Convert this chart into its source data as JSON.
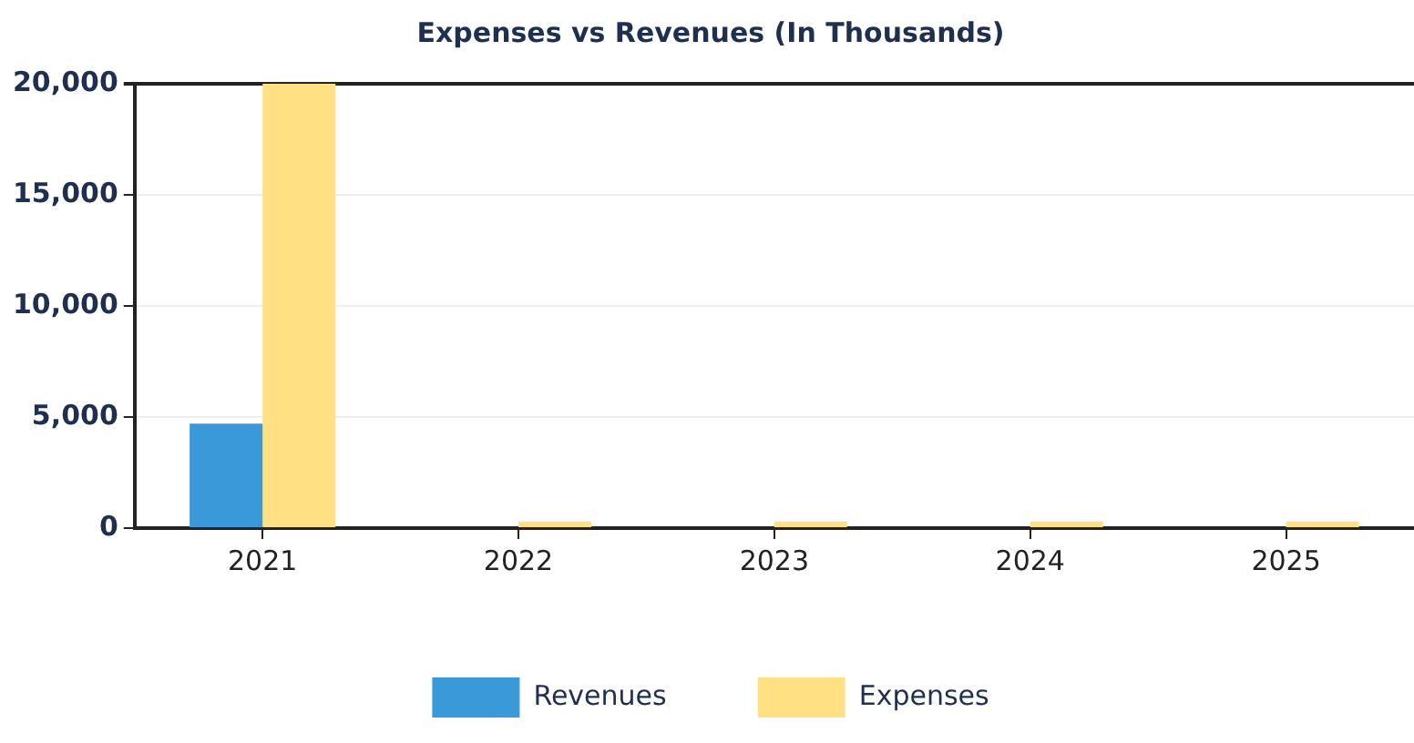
{
  "chart_data": {
    "type": "bar",
    "title": "Expenses vs Revenues (In Thousands)",
    "categories": [
      "2021",
      "2022",
      "2023",
      "2024",
      "2025"
    ],
    "series": [
      {
        "name": "Revenues",
        "color": "#3a9ad9",
        "values": [
          4700,
          0,
          0,
          0,
          0
        ]
      },
      {
        "name": "Expenses",
        "color": "#ffe083",
        "values": [
          20000,
          300,
          300,
          300,
          300
        ]
      }
    ],
    "ylim": [
      0,
      20000
    ],
    "yticks": [
      {
        "value": 0,
        "label": "0"
      },
      {
        "value": 5000,
        "label": "5,000"
      },
      {
        "value": 10000,
        "label": "10,000"
      },
      {
        "value": 15000,
        "label": "15,000"
      },
      {
        "value": 20000,
        "label": "20,000"
      }
    ],
    "grid": "y",
    "legend": "bottom"
  }
}
